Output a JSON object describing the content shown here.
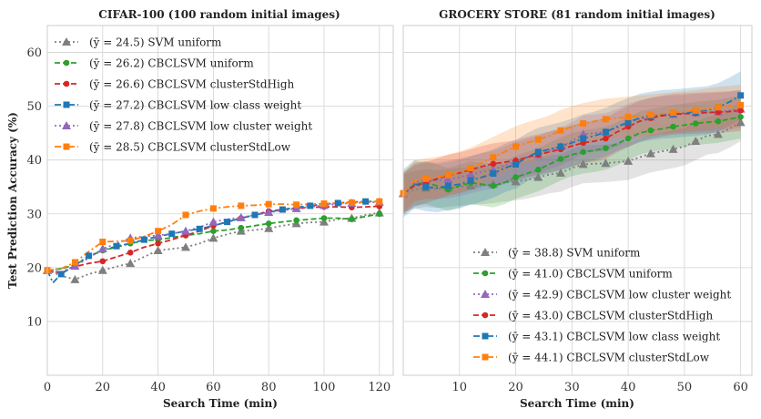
{
  "colors": {
    "SVM uniform": "#7f7f7f",
    "CBCLSVM uniform": "#2ca02c",
    "CBCLSVM clusterStdHigh": "#d62728",
    "CBCLSVM low class weight": "#1f77b4",
    "CBCLSVM low cluster weight": "#9467bd",
    "CBCLSVM clusterStdLow": "#ff7f0e"
  },
  "chart_data": [
    {
      "type": "line",
      "title": "CIFAR-100 (100 random initial images)",
      "xlabel": "Search Time (min)",
      "ylabel": "Test Prediction Accuracy (%)",
      "xlim": [
        0,
        125
      ],
      "ylim": [
        0,
        65
      ],
      "xticks": [
        0,
        20,
        40,
        60,
        80,
        100,
        120
      ],
      "yticks": [
        10,
        20,
        30,
        40,
        50,
        60
      ],
      "grid": true,
      "legend_position": "upper-left",
      "series": [
        {
          "name": "SVM uniform",
          "legend": "(ȳ =  24.5) SVM uniform",
          "style": "dotted",
          "marker": "triangle",
          "x": [
            0,
            5,
            10,
            15,
            20,
            25,
            30,
            35,
            40,
            45,
            50,
            55,
            60,
            65,
            70,
            75,
            80,
            85,
            90,
            95,
            100,
            105,
            110,
            115,
            120
          ],
          "y": [
            19.5,
            18.5,
            17.8,
            18.8,
            19.5,
            20.2,
            20.8,
            22.0,
            23.2,
            23.5,
            23.8,
            24.5,
            25.5,
            26.2,
            26.8,
            27.0,
            27.3,
            27.8,
            28.2,
            28.4,
            28.5,
            29.0,
            29.2,
            29.8,
            30.2
          ]
        },
        {
          "name": "CBCLSVM uniform",
          "legend": "(ȳ =  26.2) CBCLSVM uniform",
          "style": "dashed",
          "marker": "circle",
          "x": [
            0,
            5,
            10,
            15,
            20,
            25,
            30,
            35,
            40,
            45,
            50,
            55,
            60,
            65,
            70,
            75,
            80,
            85,
            90,
            95,
            100,
            105,
            110,
            115,
            120
          ],
          "y": [
            19.5,
            19.8,
            20.5,
            22.0,
            23.2,
            23.8,
            24.5,
            25.0,
            25.2,
            25.6,
            26.0,
            26.3,
            26.8,
            27.0,
            27.4,
            27.8,
            28.2,
            28.5,
            28.8,
            29.0,
            29.2,
            29.2,
            29.0,
            29.5,
            30.0
          ]
        },
        {
          "name": "CBCLSVM clusterStdHigh",
          "legend": "(ȳ =  26.6) CBCLSVM clusterStdHigh",
          "style": "dashed",
          "marker": "circle",
          "x": [
            0,
            5,
            10,
            15,
            20,
            25,
            30,
            35,
            40,
            45,
            50,
            55,
            60,
            65,
            70,
            75,
            80,
            85,
            90,
            95,
            100,
            105,
            110,
            115,
            120
          ],
          "y": [
            19.5,
            19.0,
            20.2,
            20.8,
            21.2,
            22.0,
            22.8,
            23.8,
            24.5,
            25.2,
            26.0,
            26.8,
            27.8,
            28.5,
            29.2,
            29.8,
            30.5,
            30.8,
            31.0,
            31.2,
            31.3,
            31.3,
            31.2,
            31.3,
            31.4
          ]
        },
        {
          "name": "CBCLSVM low class weight",
          "legend": "(ȳ =  27.2) CBCLSVM low class weight",
          "style": "dashdot",
          "marker": "square",
          "x": [
            0,
            2,
            5,
            10,
            15,
            20,
            25,
            30,
            35,
            40,
            45,
            50,
            55,
            60,
            65,
            70,
            75,
            80,
            85,
            90,
            95,
            100,
            105,
            110,
            115,
            120
          ],
          "y": [
            19.5,
            17.2,
            18.8,
            20.5,
            22.2,
            23.2,
            24.0,
            24.5,
            25.2,
            25.8,
            26.3,
            26.8,
            27.2,
            27.8,
            28.5,
            29.2,
            29.8,
            30.3,
            30.8,
            31.2,
            31.5,
            31.8,
            32.0,
            32.2,
            32.3,
            32.3
          ]
        },
        {
          "name": "CBCLSVM low cluster weight",
          "legend": "(ȳ =  27.8) CBCLSVM low cluster weight",
          "style": "dotted",
          "marker": "triangle",
          "x": [
            0,
            5,
            10,
            15,
            20,
            25,
            30,
            35,
            40,
            45,
            50,
            55,
            60,
            65,
            70,
            75,
            80,
            85,
            90,
            95,
            100,
            105,
            110,
            115,
            120
          ],
          "y": [
            19.5,
            19.2,
            20.3,
            21.8,
            23.5,
            24.5,
            25.5,
            25.8,
            26.0,
            26.3,
            26.8,
            27.5,
            28.5,
            29.0,
            29.3,
            29.8,
            30.3,
            30.6,
            31.0,
            31.3,
            31.6,
            31.8,
            32.0,
            32.1,
            32.2
          ]
        },
        {
          "name": "CBCLSVM clusterStdLow",
          "legend": "(ȳ =  28.5) CBCLSVM clusterStdLow",
          "style": "dashdot",
          "marker": "square",
          "x": [
            0,
            5,
            10,
            15,
            20,
            25,
            30,
            35,
            40,
            45,
            50,
            55,
            60,
            65,
            70,
            75,
            80,
            85,
            90,
            95,
            100,
            105,
            110,
            115,
            120
          ],
          "y": [
            19.5,
            19.8,
            21.0,
            23.0,
            24.8,
            24.9,
            25.0,
            25.8,
            26.8,
            28.0,
            29.8,
            30.5,
            31.0,
            31.3,
            31.5,
            31.6,
            31.8,
            31.8,
            31.7,
            31.8,
            31.9,
            32.0,
            32.1,
            32.2,
            32.3
          ]
        }
      ]
    },
    {
      "type": "line",
      "title": "GROCERY STORE (81 random initial images)",
      "xlabel": "Search Time (min)",
      "ylabel": "",
      "xlim": [
        0,
        62
      ],
      "ylim": [
        0,
        65
      ],
      "xticks": [
        10,
        20,
        30,
        40,
        50,
        60
      ],
      "yticks": [],
      "grid": true,
      "legend_position": "lower-right",
      "series": [
        {
          "name": "SVM uniform",
          "legend": "(ȳ =  38.8) SVM uniform",
          "style": "dotted",
          "marker": "triangle",
          "band": 3.5,
          "x": [
            0,
            2,
            4,
            6,
            8,
            10,
            12,
            14,
            16,
            18,
            20,
            22,
            24,
            26,
            28,
            30,
            32,
            34,
            36,
            38,
            40,
            42,
            44,
            46,
            48,
            50,
            52,
            54,
            56,
            58,
            60
          ],
          "y": [
            33.8,
            34.5,
            34.8,
            34.6,
            34.8,
            35.0,
            35.2,
            35.3,
            35.5,
            35.8,
            36.0,
            36.3,
            36.8,
            37.3,
            37.6,
            38.5,
            39.2,
            39.3,
            39.4,
            39.6,
            39.8,
            40.5,
            41.2,
            41.6,
            42.0,
            42.5,
            43.5,
            44.5,
            44.8,
            45.8,
            47.0
          ]
        },
        {
          "name": "CBCLSVM uniform",
          "legend": "(ȳ =  41.0) CBCLSVM uniform",
          "style": "dashed",
          "marker": "circle",
          "band": 4.0,
          "x": [
            0,
            2,
            4,
            6,
            8,
            10,
            12,
            14,
            16,
            18,
            20,
            22,
            24,
            26,
            28,
            30,
            32,
            34,
            36,
            38,
            40,
            42,
            44,
            46,
            48,
            50,
            52,
            54,
            56,
            58,
            60
          ],
          "y": [
            33.8,
            35.5,
            35.8,
            35.2,
            34.5,
            35.2,
            35.8,
            35.5,
            35.2,
            35.8,
            36.8,
            37.5,
            38.2,
            39.2,
            40.2,
            41.0,
            41.5,
            41.8,
            42.2,
            43.0,
            44.0,
            45.0,
            45.5,
            45.8,
            46.2,
            46.5,
            46.8,
            47.0,
            47.2,
            47.6,
            48.0
          ]
        },
        {
          "name": "CBCLSVM low cluster weight",
          "legend": "(ȳ =  42.9) CBCLSVM low cluster weight",
          "style": "dotted",
          "marker": "triangle",
          "band": 3.5,
          "x": [
            0,
            2,
            4,
            6,
            8,
            10,
            12,
            14,
            16,
            18,
            20,
            22,
            24,
            26,
            28,
            30,
            32,
            34,
            36,
            38,
            40,
            42,
            44,
            46,
            48,
            50,
            52,
            54,
            56,
            58,
            60
          ],
          "y": [
            33.8,
            35.8,
            36.3,
            36.2,
            36.4,
            36.8,
            37.3,
            37.8,
            38.2,
            39.0,
            39.8,
            40.5,
            41.0,
            41.8,
            42.5,
            43.5,
            44.8,
            45.0,
            45.2,
            46.0,
            47.0,
            47.6,
            48.0,
            48.3,
            48.5,
            48.6,
            48.8,
            48.9,
            49.0,
            49.2,
            49.5
          ]
        },
        {
          "name": "CBCLSVM clusterStdHigh",
          "legend": "(ȳ =  43.0) CBCLSVM clusterStdHigh",
          "style": "dashed",
          "marker": "circle",
          "band": 3.8,
          "x": [
            0,
            2,
            4,
            6,
            8,
            10,
            12,
            14,
            16,
            18,
            20,
            22,
            24,
            26,
            28,
            30,
            32,
            34,
            36,
            38,
            40,
            42,
            44,
            46,
            48,
            50,
            52,
            54,
            56,
            58,
            60
          ],
          "y": [
            33.8,
            35.2,
            35.8,
            36.5,
            37.2,
            37.6,
            38.2,
            38.8,
            39.3,
            39.6,
            39.9,
            40.5,
            41.0,
            41.5,
            42.0,
            42.6,
            43.2,
            43.5,
            44.0,
            45.2,
            46.2,
            47.2,
            47.8,
            48.2,
            48.5,
            48.6,
            48.7,
            48.8,
            48.9,
            49.0,
            49.2
          ]
        },
        {
          "name": "CBCLSVM low class weight",
          "legend": "(ȳ =  43.1) CBCLSVM low class weight",
          "style": "dashdot",
          "marker": "square",
          "band": 4.5,
          "x": [
            0,
            2,
            4,
            6,
            8,
            10,
            12,
            14,
            16,
            18,
            20,
            22,
            24,
            26,
            28,
            30,
            32,
            34,
            36,
            38,
            40,
            42,
            44,
            46,
            48,
            50,
            52,
            54,
            56,
            58,
            60
          ],
          "y": [
            33.8,
            35.5,
            35.0,
            34.8,
            35.2,
            35.5,
            36.2,
            36.8,
            37.5,
            38.5,
            39.2,
            40.5,
            41.5,
            42.0,
            42.5,
            43.2,
            44.0,
            44.5,
            45.2,
            46.2,
            47.0,
            47.8,
            48.2,
            48.5,
            48.6,
            48.8,
            49.0,
            49.2,
            49.8,
            50.8,
            52.0
          ]
        },
        {
          "name": "CBCLSVM clusterStdLow",
          "legend": "(ȳ =  44.1) CBCLSVM clusterStdLow",
          "style": "dashdot",
          "marker": "square",
          "band": 3.8,
          "x": [
            0,
            2,
            4,
            6,
            8,
            10,
            12,
            14,
            16,
            18,
            20,
            22,
            24,
            26,
            28,
            30,
            32,
            34,
            36,
            38,
            40,
            42,
            44,
            46,
            48,
            50,
            52,
            54,
            56,
            58,
            60
          ],
          "y": [
            33.8,
            36.2,
            36.5,
            36.8,
            37.2,
            37.8,
            38.5,
            39.5,
            40.5,
            41.5,
            42.5,
            43.2,
            43.8,
            44.5,
            45.5,
            46.2,
            46.8,
            47.2,
            47.6,
            47.8,
            48.0,
            48.2,
            48.4,
            48.6,
            48.8,
            49.0,
            49.2,
            49.5,
            49.8,
            50.0,
            50.2
          ]
        }
      ]
    }
  ]
}
